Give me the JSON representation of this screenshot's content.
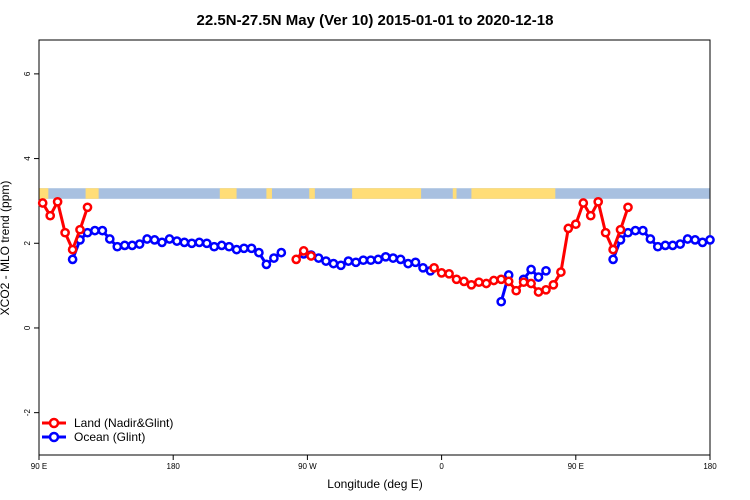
{
  "chart_data": {
    "type": "line",
    "title": "22.5N-27.5N May (Ver 10)   2015-01-01 to 2020-12-18",
    "xlabel": "Longitude (deg E)",
    "ylabel": "XCO2 - MLO trend (ppm)",
    "xlim": [
      -180,
      180
    ],
    "ylim": [
      -3,
      6.8
    ],
    "x_ticks": [
      {
        "value": -180,
        "label": "90 E"
      },
      {
        "value": -108,
        "label": "180"
      },
      {
        "value": -36,
        "label": "90 W"
      },
      {
        "value": 36,
        "label": "0"
      },
      {
        "value": 108,
        "label": "90 E"
      },
      {
        "value": 180,
        "label": "180"
      }
    ],
    "y_ticks": [
      {
        "value": -2,
        "label": "-2"
      },
      {
        "value": 0,
        "label": "0"
      },
      {
        "value": 2,
        "label": "2"
      },
      {
        "value": 4,
        "label": "4"
      },
      {
        "value": 6,
        "label": "6"
      }
    ],
    "legend_position": "bottom-left",
    "grid": false,
    "land_mask_band": {
      "y_range": [
        3.05,
        3.3
      ],
      "ocean_color": "#a8c0e0",
      "land_color": "#ffdd77",
      "land_segments_lon": [
        [
          -180,
          -175
        ],
        [
          -155,
          -148
        ],
        [
          -83,
          -74
        ],
        [
          -58,
          -55
        ],
        [
          -35,
          -32
        ],
        [
          -12,
          25
        ],
        [
          42,
          44
        ],
        [
          52,
          97
        ]
      ]
    },
    "series": [
      {
        "name": "Land (Nadir&Glint)",
        "color": "#ff0000",
        "segments": [
          [
            [
              -178,
              2.95
            ],
            [
              -174,
              2.65
            ],
            [
              -170,
              2.98
            ],
            [
              -166,
              2.25
            ],
            [
              -162,
              1.85
            ],
            [
              -158,
              2.32
            ],
            [
              -154,
              2.85
            ]
          ],
          [
            [
              -42,
              1.62
            ],
            [
              -38,
              1.82
            ],
            [
              -34,
              1.7
            ]
          ],
          [
            [
              32,
              1.42
            ],
            [
              36,
              1.3
            ],
            [
              40,
              1.28
            ],
            [
              44,
              1.15
            ],
            [
              48,
              1.1
            ],
            [
              52,
              1.02
            ],
            [
              56,
              1.08
            ],
            [
              60,
              1.05
            ],
            [
              64,
              1.12
            ],
            [
              68,
              1.15
            ],
            [
              72,
              1.1
            ],
            [
              76,
              0.88
            ],
            [
              80,
              1.08
            ],
            [
              84,
              1.05
            ],
            [
              88,
              0.85
            ],
            [
              92,
              0.9
            ],
            [
              96,
              1.02
            ],
            [
              100,
              1.32
            ],
            [
              104,
              2.35
            ],
            [
              108,
              2.45
            ],
            [
              112,
              2.95
            ],
            [
              116,
              2.65
            ],
            [
              120,
              2.98
            ],
            [
              124,
              2.25
            ],
            [
              128,
              1.85
            ],
            [
              132,
              2.32
            ],
            [
              136,
              2.85
            ]
          ]
        ]
      },
      {
        "name": "Ocean (Glint)",
        "color": "#0000ff",
        "segments": [
          [
            [
              -162,
              1.62
            ],
            [
              -158,
              2.08
            ],
            [
              -154,
              2.25
            ],
            [
              -150,
              2.3
            ],
            [
              -146,
              2.3
            ],
            [
              -142,
              2.1
            ],
            [
              -138,
              1.92
            ],
            [
              -134,
              1.95
            ],
            [
              -130,
              1.95
            ],
            [
              -126,
              1.98
            ],
            [
              -122,
              2.1
            ],
            [
              -118,
              2.08
            ],
            [
              -114,
              2.02
            ],
            [
              -110,
              2.1
            ],
            [
              -106,
              2.05
            ],
            [
              -102,
              2.02
            ],
            [
              -98,
              2.0
            ],
            [
              -94,
              2.02
            ],
            [
              -90,
              2.0
            ],
            [
              -86,
              1.92
            ],
            [
              -82,
              1.95
            ],
            [
              -78,
              1.92
            ],
            [
              -74,
              1.85
            ],
            [
              -70,
              1.88
            ],
            [
              -66,
              1.88
            ],
            [
              -62,
              1.78
            ],
            [
              -58,
              1.5
            ],
            [
              -54,
              1.65
            ],
            [
              -50,
              1.78
            ]
          ],
          [
            [
              -38,
              1.75
            ],
            [
              -34,
              1.72
            ],
            [
              -30,
              1.65
            ],
            [
              -26,
              1.58
            ],
            [
              -22,
              1.52
            ],
            [
              -18,
              1.48
            ],
            [
              -14,
              1.58
            ],
            [
              -10,
              1.55
            ],
            [
              -6,
              1.6
            ],
            [
              -2,
              1.6
            ],
            [
              2,
              1.62
            ],
            [
              6,
              1.68
            ],
            [
              10,
              1.65
            ],
            [
              14,
              1.62
            ],
            [
              18,
              1.52
            ],
            [
              22,
              1.55
            ],
            [
              26,
              1.42
            ],
            [
              30,
              1.35
            ]
          ],
          [
            [
              68,
              0.62
            ],
            [
              72,
              1.25
            ]
          ],
          [
            [
              80,
              1.15
            ],
            [
              84,
              1.38
            ],
            [
              88,
              1.2
            ],
            [
              92,
              1.35
            ]
          ],
          [
            [
              128,
              1.62
            ],
            [
              132,
              2.08
            ],
            [
              136,
              2.25
            ],
            [
              140,
              2.3
            ],
            [
              144,
              2.3
            ],
            [
              148,
              2.1
            ],
            [
              152,
              1.92
            ],
            [
              156,
              1.95
            ],
            [
              160,
              1.95
            ],
            [
              164,
              1.98
            ],
            [
              168,
              2.1
            ],
            [
              172,
              2.08
            ],
            [
              176,
              2.02
            ],
            [
              180,
              2.08
            ]
          ]
        ]
      }
    ]
  }
}
